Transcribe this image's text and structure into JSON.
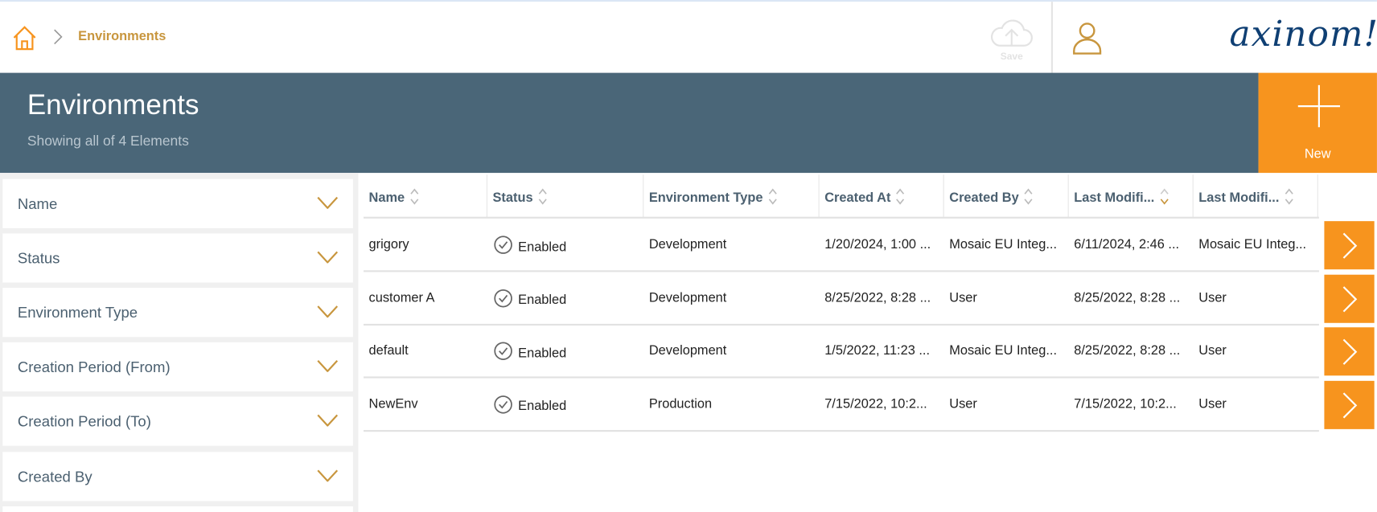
{
  "header": {
    "breadcrumb": "Environments",
    "save_label": "Save",
    "logo_text": "axinom!",
    "accent_color": "#f7941e",
    "brand_color": "#4a6678"
  },
  "page": {
    "title": "Environments",
    "subtitle": "Showing all of 4 Elements",
    "new_label": "New"
  },
  "filters": [
    "Name",
    "Status",
    "Environment Type",
    "Creation Period (From)",
    "Creation Period (To)",
    "Created By"
  ],
  "table": {
    "columns": [
      "Name",
      "Status",
      "Environment Type",
      "Created At",
      "Created By",
      "Last Modifi...",
      "Last Modifi..."
    ],
    "sorted_column": 5,
    "sort_direction": "desc",
    "rows": [
      [
        "grigory",
        "Enabled",
        "Development",
        "1/20/2024, 1:00 ...",
        "Mosaic EU Integ...",
        "6/11/2024, 2:46 ...",
        "Mosaic EU Integ..."
      ],
      [
        "customer A",
        "Enabled",
        "Development",
        "8/25/2022, 8:28 ...",
        "User",
        "8/25/2022, 8:28 ...",
        "User"
      ],
      [
        "default",
        "Enabled",
        "Development",
        "1/5/2022, 11:23 ...",
        "Mosaic EU Integ...",
        "8/25/2022, 8:28 ...",
        "User"
      ],
      [
        "NewEnv",
        "Enabled",
        "Production",
        "7/15/2022, 10:2...",
        "User",
        "7/15/2022, 10:2...",
        "User"
      ]
    ]
  }
}
